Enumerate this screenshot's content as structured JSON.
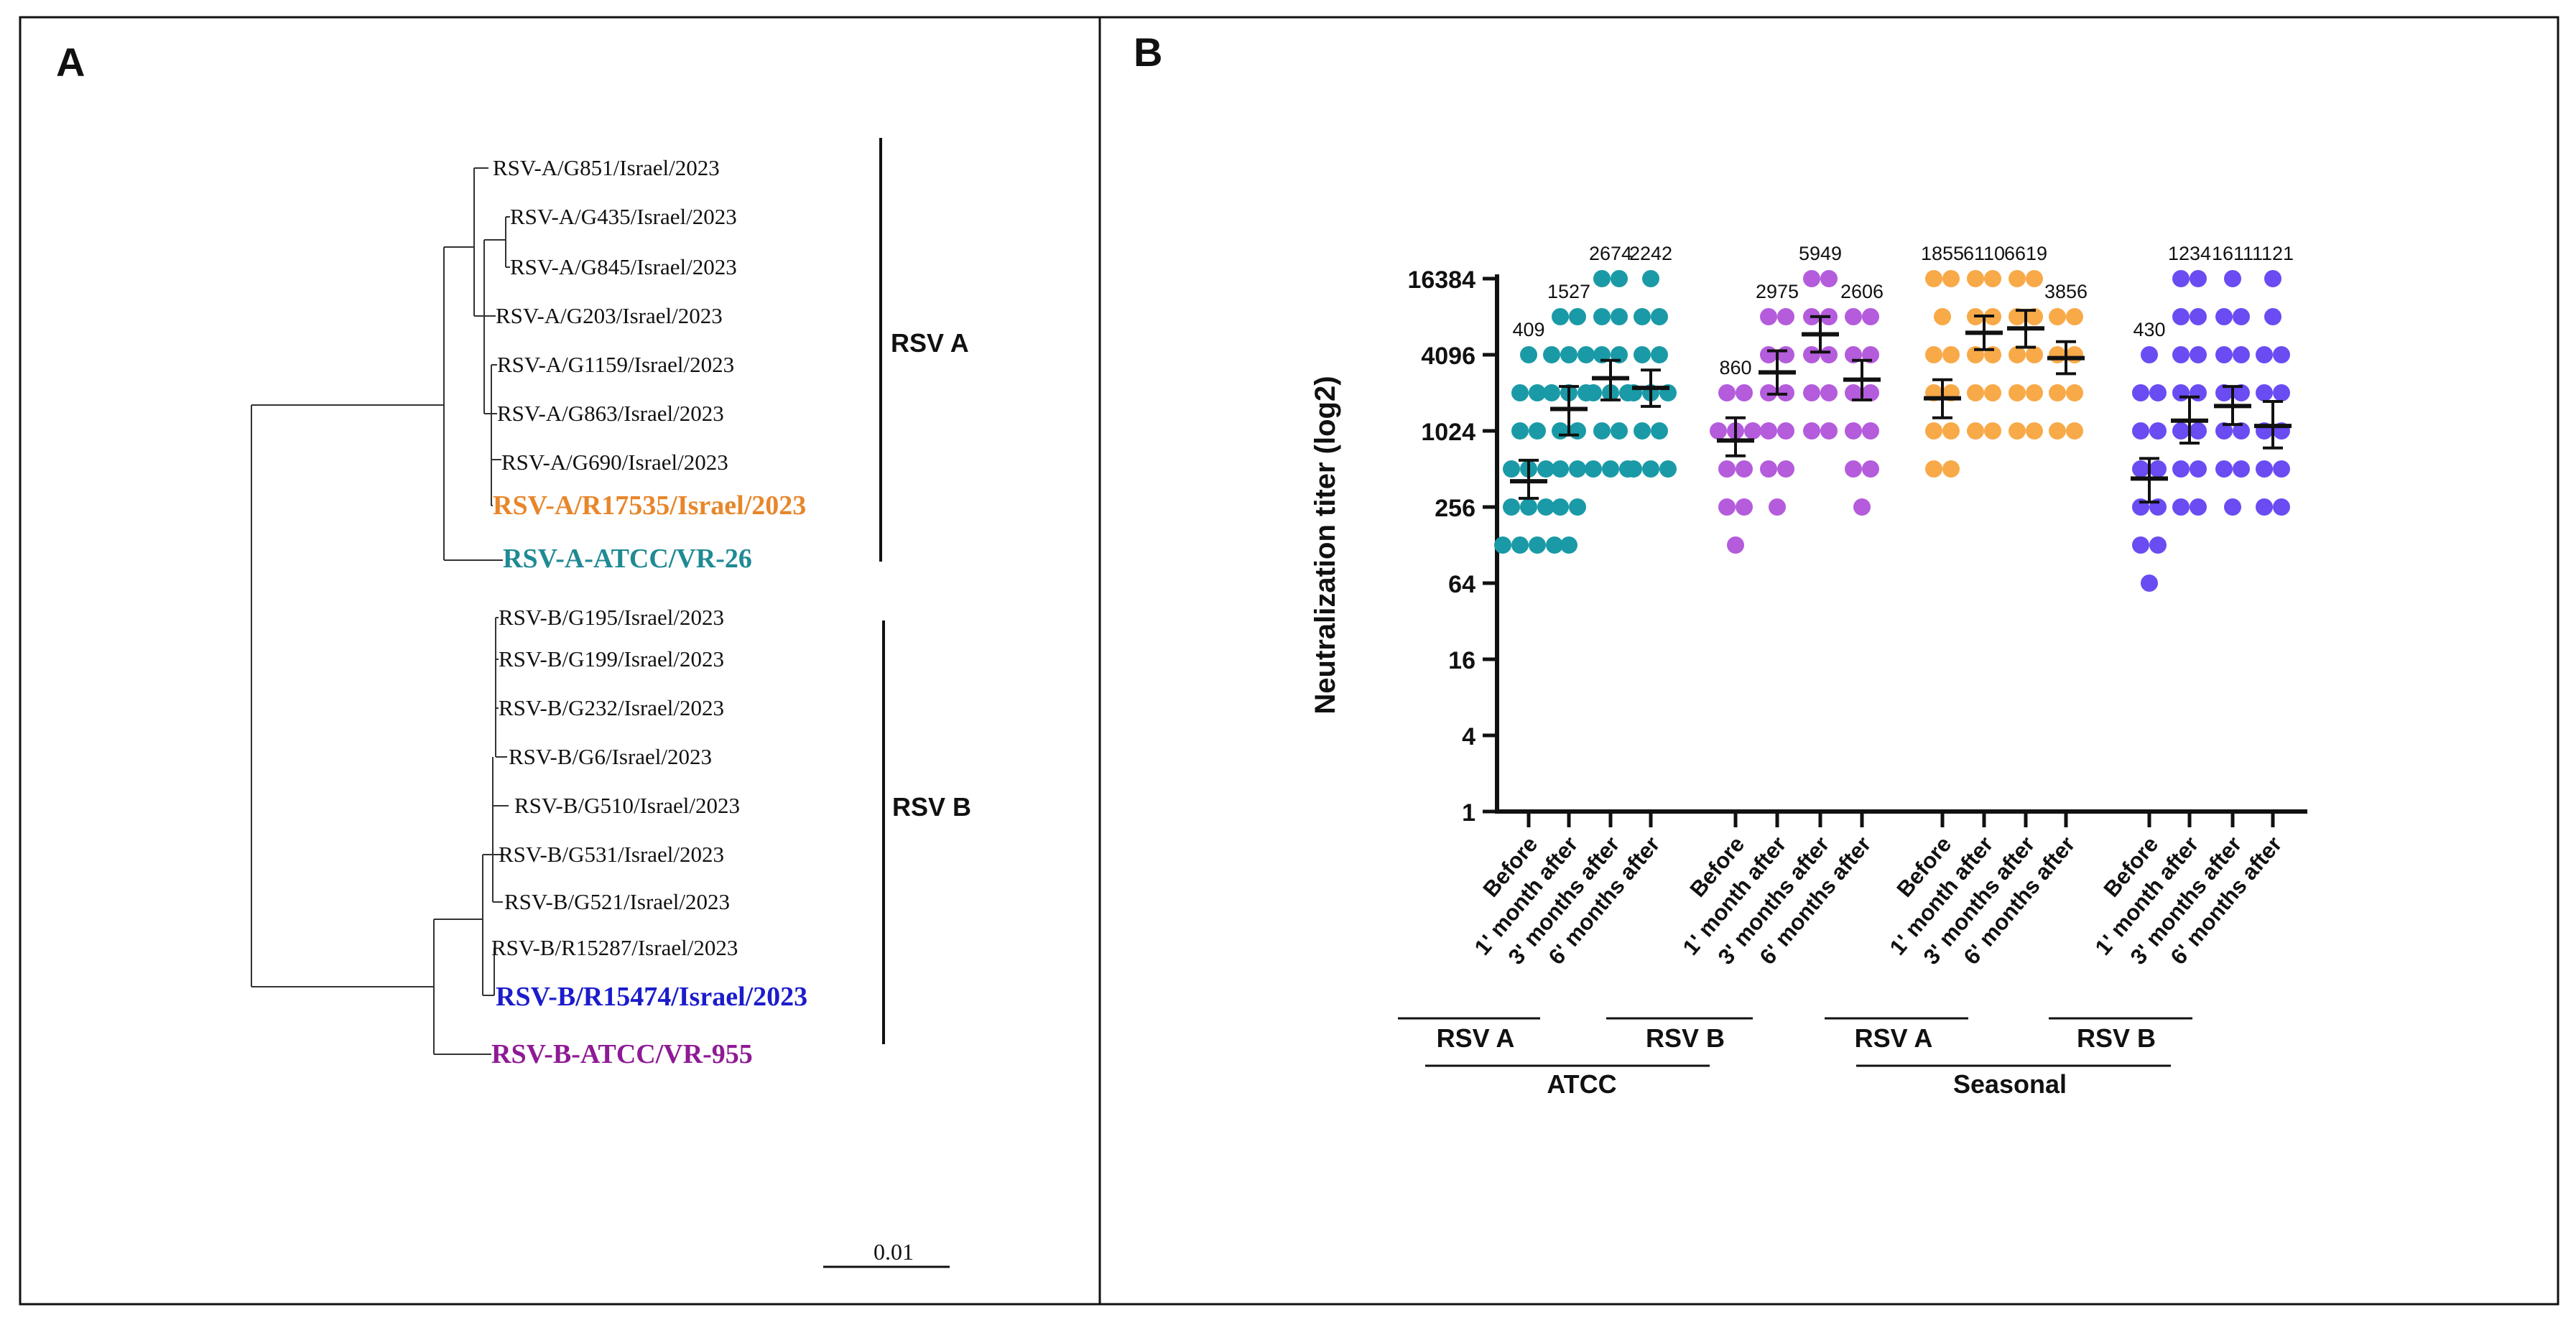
{
  "panels": {
    "a_label": "A",
    "b_label": "B"
  },
  "tree": {
    "rsv_a_taxa": [
      "RSV-A/G851/Israel/2023",
      "RSV-A/G435/Israel/2023",
      "RSV-A/G845/Israel/2023",
      "RSV-A/G203/Israel/2023",
      "RSV-A/G1159/Israel/2023",
      "RSV-A/G863/Israel/2023",
      "RSV-A/G690/Israel/2023",
      "RSV-A/R17535/Israel/2023",
      "RSV-A-ATCC/VR-26"
    ],
    "rsv_b_taxa": [
      "RSV-B/G195/Israel/2023",
      "RSV-B/G199/Israel/2023",
      "RSV-B/G232/Israel/2023",
      "RSV-B/G6/Israel/2023",
      "RSV-B/G510/Israel/2023",
      "RSV-B/G531/Israel/2023",
      "RSV-B/G521/Israel/2023",
      "RSV-B/R15287/Israel/2023",
      "RSV-B/R15474/Israel/2023",
      "RSV-B-ATCC/VR-955"
    ],
    "clade_a": "RSV A",
    "clade_b": "RSV B",
    "scale_label": "0.01",
    "colors": {
      "r17535": "#e8862a",
      "vr26": "#1f8a94",
      "r15474": "#1c1ccc",
      "vr955": "#8e1a95"
    }
  },
  "chart_data": {
    "type": "scatter",
    "ylabel": "Neutralization titer (log2)",
    "yscale": "log2",
    "ylim": [
      1,
      16384
    ],
    "yticks": [
      "1",
      "4",
      "16",
      "64",
      "256",
      "1024",
      "4096",
      "16384"
    ],
    "categories": [
      "Before",
      "1' month after",
      "3' months after",
      "6' months after",
      "Before",
      "1' month after",
      "3' months after",
      "6' months after",
      "Before",
      "1' month after",
      "3' months after",
      "6' months after",
      "Before",
      "1' month after",
      "3' months after",
      "6' months after"
    ],
    "geometric_means": [
      "409",
      "1527",
      "2674",
      "2242",
      "860",
      "2975",
      "5949",
      "2606",
      "1855",
      "6110",
      "6619",
      "3856",
      "430",
      "1234",
      "1611",
      "1121"
    ],
    "series": [
      {
        "virus": "RSV A",
        "source": "ATCC",
        "color": "#1a9aa6",
        "mean": [
          409,
          1527,
          2674,
          2242
        ],
        "ci_low": [
          300,
          950,
          1800,
          1600
        ],
        "ci_high": [
          600,
          2300,
          3700,
          3100
        ]
      },
      {
        "virus": "RSV B",
        "source": "ATCC",
        "color": "#b45cdc",
        "mean": [
          860,
          2975,
          5949,
          2606
        ],
        "ci_low": [
          650,
          2000,
          4300,
          1800
        ],
        "ci_high": [
          1300,
          4400,
          8200,
          3700
        ]
      },
      {
        "virus": "RSV A",
        "source": "Seasonal",
        "color": "#f8a948",
        "mean": [
          1855,
          6110,
          6619,
          3856
        ],
        "ci_low": [
          1300,
          4500,
          4700,
          2900
        ],
        "ci_high": [
          2600,
          8300,
          9200,
          5200
        ]
      },
      {
        "virus": "RSV B",
        "source": "Seasonal",
        "color": "#6a4cf2",
        "mean": [
          430,
          1234,
          1611,
          1121
        ],
        "ci_low": [
          280,
          820,
          1150,
          750
        ],
        "ci_high": [
          620,
          1900,
          2300,
          1750
        ]
      }
    ],
    "points": [
      [
        4096,
        2048,
        2048,
        1024,
        1024,
        512,
        512,
        512,
        256,
        256,
        256,
        128,
        128,
        128,
        128
      ],
      [
        8192,
        8192,
        4096,
        4096,
        4096,
        2048,
        2048,
        2048,
        1024,
        1024,
        512,
        512,
        256,
        256,
        128
      ],
      [
        16384,
        16384,
        8192,
        8192,
        4096,
        4096,
        2048,
        2048,
        2048,
        1024,
        1024,
        512,
        512,
        512
      ],
      [
        16384,
        8192,
        8192,
        4096,
        4096,
        2048,
        2048,
        2048,
        1024,
        1024,
        512,
        512,
        512
      ],
      [
        2048,
        2048,
        1024,
        1024,
        1024,
        512,
        512,
        256,
        256,
        128
      ],
      [
        8192,
        8192,
        4096,
        4096,
        2048,
        2048,
        1024,
        1024,
        512,
        512,
        256
      ],
      [
        16384,
        16384,
        8192,
        8192,
        4096,
        4096,
        2048,
        2048,
        1024,
        1024
      ],
      [
        8192,
        8192,
        4096,
        4096,
        2048,
        2048,
        1024,
        1024,
        512,
        512,
        256
      ],
      [
        16384,
        16384,
        8192,
        4096,
        4096,
        2048,
        2048,
        1024,
        1024,
        512,
        512
      ],
      [
        16384,
        16384,
        8192,
        8192,
        4096,
        4096,
        2048,
        2048,
        1024,
        1024
      ],
      [
        16384,
        16384,
        8192,
        8192,
        4096,
        4096,
        2048,
        2048,
        1024,
        1024
      ],
      [
        8192,
        8192,
        4096,
        4096,
        2048,
        2048,
        1024,
        1024
      ],
      [
        4096,
        2048,
        2048,
        1024,
        1024,
        512,
        512,
        256,
        256,
        128,
        128,
        64
      ],
      [
        16384,
        16384,
        8192,
        8192,
        4096,
        4096,
        2048,
        2048,
        1024,
        1024,
        512,
        512,
        256,
        256
      ],
      [
        16384,
        8192,
        8192,
        4096,
        4096,
        2048,
        2048,
        1024,
        1024,
        512,
        512,
        256
      ],
      [
        16384,
        8192,
        4096,
        4096,
        2048,
        2048,
        1024,
        1024,
        512,
        512,
        256,
        256
      ]
    ],
    "group_labels": [
      "RSV A",
      "RSV B",
      "RSV A",
      "RSV B"
    ],
    "source_labels": [
      "ATCC",
      "Seasonal"
    ]
  }
}
